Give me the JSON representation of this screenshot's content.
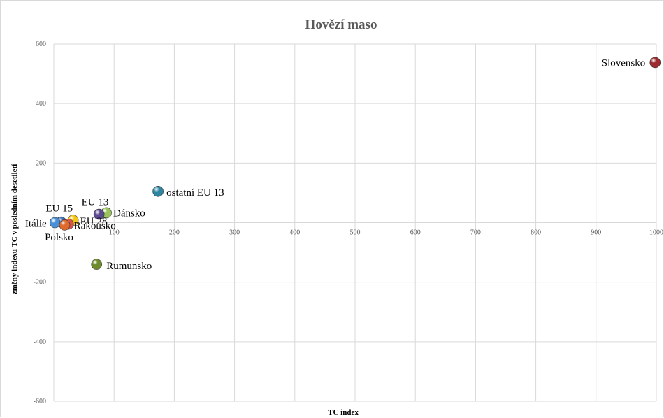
{
  "chart_data": {
    "type": "scatter",
    "title": "Hovězí maso",
    "xlabel": "TC index",
    "ylabel": "změny indexu TC v posledním desetiletí",
    "xlim": [
      0,
      1000
    ],
    "ylim": [
      -600,
      600
    ],
    "x_ticks": [
      0,
      100,
      200,
      300,
      400,
      500,
      600,
      700,
      800,
      900,
      1000
    ],
    "x_tick_labels": [
      "",
      "100",
      "200",
      "300",
      "400",
      "500",
      "600",
      "700",
      "800",
      "900",
      "1000"
    ],
    "y_ticks": [
      -600,
      -400,
      -200,
      200,
      400,
      600
    ],
    "y_tick_labels": [
      "-600",
      "-400",
      "-200",
      "200",
      "400",
      "600"
    ],
    "grid": true,
    "points": [
      {
        "label": "Slovensko",
        "x": 998,
        "y": 538,
        "color": "#9b2b2e"
      },
      {
        "label": "ostatní EU 13",
        "x": 173,
        "y": 105,
        "color": "#2e86a3"
      },
      {
        "label": "Dánsko",
        "x": 87,
        "y": 33,
        "color": "#9ac45b"
      },
      {
        "label": "EU 13",
        "x": 75,
        "y": 28,
        "color": "#5b4a8e"
      },
      {
        "label": "EU 15",
        "x": 12,
        "y": 2,
        "color": "#3f6fb5"
      },
      {
        "label": "EU 28",
        "x": 32,
        "y": 8,
        "color": "#f5c518"
      },
      {
        "label": "Itálie",
        "x": 2,
        "y": 0,
        "color": "#4a90d9"
      },
      {
        "label": "Rakousko",
        "x": 24,
        "y": -5,
        "color": "#d9534f"
      },
      {
        "label": "Polsko",
        "x": 18,
        "y": -8,
        "color": "#e06a2b"
      },
      {
        "label": "Rumunsko",
        "x": 71,
        "y": -140,
        "color": "#6e8b2e"
      }
    ]
  }
}
